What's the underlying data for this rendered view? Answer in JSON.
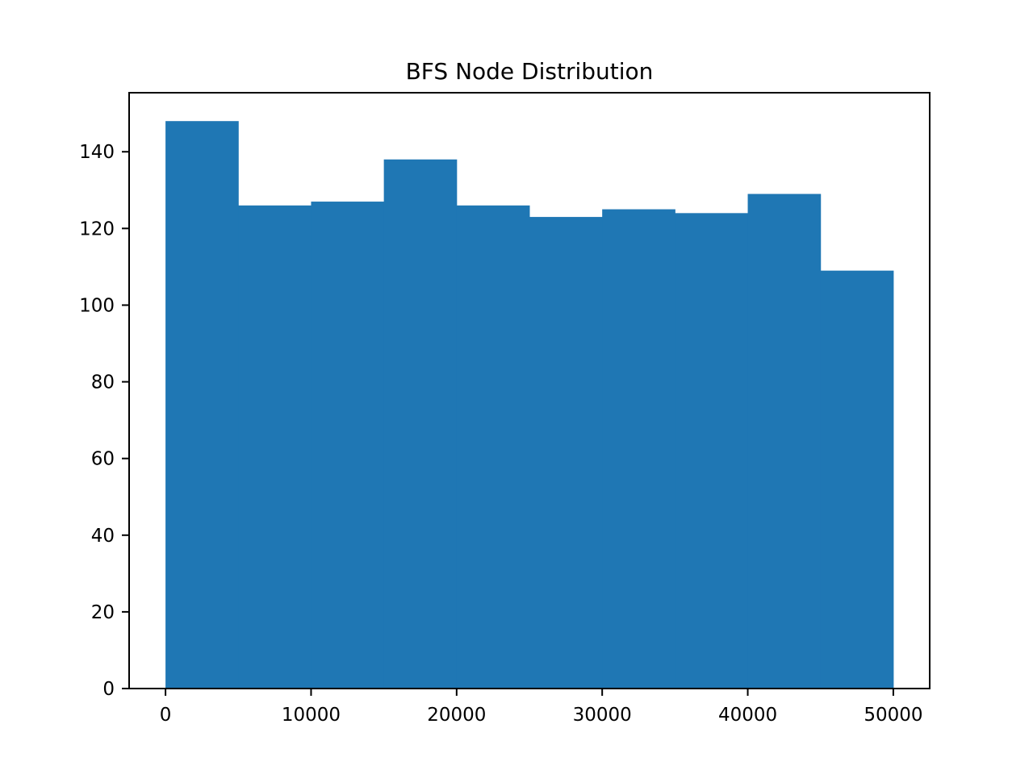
{
  "chart_data": {
    "type": "bar",
    "title": "BFS Node Distribution",
    "xlabel": "",
    "ylabel": "",
    "bin_edges": [
      0,
      5000,
      10000,
      15000,
      20000,
      25000,
      30000,
      35000,
      40000,
      45000,
      50000
    ],
    "values": [
      148,
      126,
      127,
      138,
      126,
      123,
      125,
      124,
      129,
      109
    ],
    "xlim": [
      -2500,
      52500
    ],
    "ylim": [
      0,
      155.4
    ],
    "xticks": [
      0,
      10000,
      20000,
      30000,
      40000,
      50000
    ],
    "xtick_labels": [
      "0",
      "10000",
      "20000",
      "30000",
      "40000",
      "50000"
    ],
    "yticks": [
      0,
      20,
      40,
      60,
      80,
      100,
      120,
      140
    ],
    "ytick_labels": [
      "0",
      "20",
      "40",
      "60",
      "80",
      "100",
      "120",
      "140"
    ],
    "bar_color": "#1f77b4",
    "grid": false,
    "legend": "none"
  }
}
